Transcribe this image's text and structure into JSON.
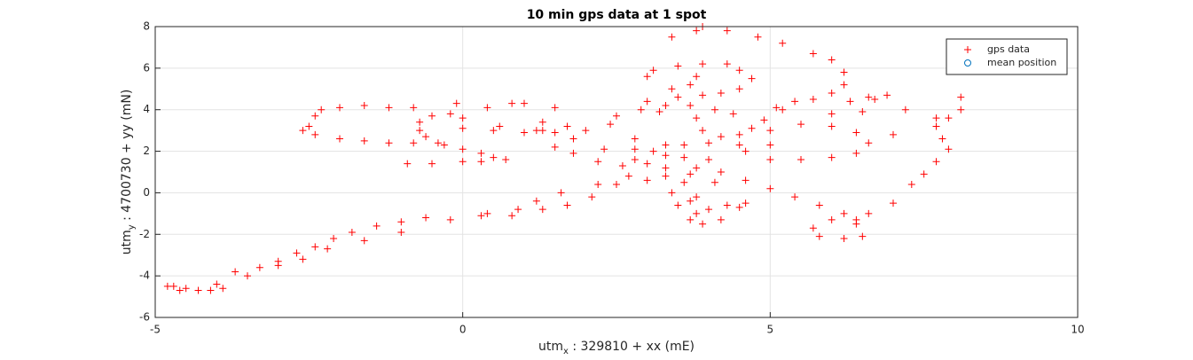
{
  "chart_data": {
    "type": "scatter",
    "title": "10 min gps data at 1 spot",
    "xlabel": {
      "main": "utm",
      "sub": "x",
      "rest": " : 329810 + xx (mE)"
    },
    "ylabel": {
      "main": "utm",
      "sub": "y",
      "rest": " : 4700730 + yy (mN)"
    },
    "xlim": [
      -5,
      10
    ],
    "ylim": [
      -6,
      8
    ],
    "xticks": [
      -5,
      0,
      5,
      10
    ],
    "yticks": [
      -6,
      -4,
      -2,
      0,
      2,
      4,
      6,
      8
    ],
    "grid": true,
    "legend": "northeast",
    "series": [
      {
        "name": "gps data",
        "color": "#ff0000",
        "marker": "plus",
        "x": [
          -4.7,
          -4.5,
          -4.3,
          -4.0,
          -3.7,
          -3.3,
          -3.0,
          -2.7,
          -2.4,
          -2.1,
          -1.8,
          -1.4,
          -1.0,
          -0.6,
          -0.2,
          0.3,
          0.8,
          1.3,
          1.7,
          2.1,
          2.5,
          3.0,
          3.3,
          3.6,
          3.7,
          3.8,
          3.9,
          4.2,
          4.5,
          4.6,
          4.1,
          3.7,
          3.3,
          2.8,
          2.3,
          1.8,
          1.3,
          0.6,
          0.0,
          -2.5,
          -2.4,
          -2.3,
          -2.0,
          -1.6,
          -1.2,
          -0.8,
          -2.6,
          -2.4,
          -2.0,
          -1.6,
          -1.2,
          -0.8,
          -0.4,
          -0.6,
          -0.7,
          -0.7,
          -0.5,
          -0.2,
          0.0,
          -0.3,
          0.0,
          0.3,
          0.5,
          0.7,
          0.3,
          0.0,
          -0.5,
          -0.9,
          0.5,
          1.0,
          1.5,
          2.0,
          2.4,
          2.5,
          2.9,
          3.3,
          3.7,
          4.1,
          4.4,
          2.8,
          2.8,
          3.1,
          3.3,
          3.6,
          4.0,
          4.5,
          5.0,
          3.7,
          3.8,
          3.4,
          3.0,
          3.1,
          3.5,
          3.9,
          4.3,
          4.5,
          4.7,
          4.5,
          4.2,
          3.9,
          3.5,
          3.4,
          3.8,
          3.9,
          4.3,
          4.8,
          5.2,
          5.7,
          6.0,
          6.2,
          6.2,
          6.0,
          5.7,
          5.4,
          5.1,
          6.3,
          6.6,
          6.9,
          6.7,
          7.2,
          7.7,
          8.1,
          8.1,
          7.9,
          7.7,
          7.8,
          7.9,
          7.7,
          7.5,
          7.3,
          7.0,
          6.6,
          6.4,
          6.5,
          6.2,
          5.8,
          5.7,
          6.0,
          6.4,
          6.2,
          5.8,
          5.4,
          5.0,
          4.6,
          4.2,
          3.8,
          5.0,
          5.5,
          6.0,
          6.4,
          6.6,
          6.4,
          6.0,
          5.5,
          5.0,
          4.7,
          4.5,
          4.9,
          5.2,
          6.0,
          6.5,
          7.0,
          3.8,
          3.9,
          4.2,
          4.6,
          4.0,
          3.6,
          3.3,
          3.0,
          2.6,
          2.2,
          1.8,
          1.5,
          1.2,
          1.7,
          1.3,
          1.5,
          1.0,
          0.8,
          0.4,
          -0.1,
          3.0,
          3.2,
          2.7,
          2.2,
          1.6,
          1.2,
          0.9,
          0.4,
          3.7,
          4.0,
          4.3,
          3.8,
          3.4,
          3.5,
          -1.0,
          -1.6,
          -2.2,
          -3.5,
          -3.9,
          -4.6,
          -4.8,
          -4.1,
          -3.0,
          -2.6
        ],
        "values": [
          -4.5,
          -4.6,
          -4.7,
          -4.4,
          -3.8,
          -3.6,
          -3.3,
          -2.9,
          -2.6,
          -2.2,
          -1.9,
          -1.6,
          -1.4,
          -1.2,
          -1.3,
          -1.1,
          -1.1,
          -0.8,
          -0.6,
          -0.2,
          0.4,
          0.6,
          0.8,
          0.5,
          -0.4,
          -1.0,
          -1.5,
          -1.3,
          -0.7,
          -0.5,
          0.5,
          0.9,
          1.2,
          1.6,
          2.1,
          2.6,
          3.0,
          3.2,
          3.1,
          3.2,
          3.7,
          4.0,
          4.1,
          4.2,
          4.1,
          4.1,
          3.0,
          2.8,
          2.6,
          2.5,
          2.4,
          2.4,
          2.4,
          2.7,
          3.0,
          3.4,
          3.7,
          3.8,
          3.6,
          2.3,
          2.1,
          1.9,
          1.7,
          1.6,
          1.5,
          1.5,
          1.4,
          1.4,
          3.0,
          2.9,
          2.9,
          3.0,
          3.3,
          3.7,
          4.0,
          4.2,
          4.2,
          4.0,
          3.8,
          2.6,
          2.1,
          2.0,
          2.3,
          2.3,
          2.4,
          2.3,
          2.3,
          5.2,
          5.6,
          5.0,
          5.6,
          5.9,
          6.1,
          6.2,
          6.2,
          5.9,
          5.5,
          5.0,
          4.8,
          4.7,
          4.6,
          7.5,
          7.8,
          8.0,
          7.8,
          7.5,
          7.2,
          6.7,
          6.4,
          5.8,
          5.2,
          4.8,
          4.5,
          4.4,
          4.1,
          4.4,
          4.6,
          4.7,
          4.5,
          4.0,
          3.6,
          4.0,
          4.6,
          3.6,
          3.2,
          2.6,
          2.1,
          1.5,
          0.9,
          0.4,
          -0.5,
          -1.0,
          -1.5,
          -2.1,
          -2.2,
          -2.1,
          -1.7,
          -1.3,
          -1.3,
          -1.0,
          -0.6,
          -0.2,
          0.2,
          0.6,
          1.0,
          1.2,
          1.6,
          1.6,
          1.7,
          1.9,
          2.4,
          2.9,
          3.2,
          3.3,
          3.0,
          3.1,
          2.8,
          3.5,
          4.0,
          3.8,
          3.9,
          2.8,
          3.6,
          3.0,
          2.7,
          2.0,
          1.6,
          1.7,
          1.8,
          1.4,
          1.3,
          1.5,
          1.9,
          2.2,
          3.0,
          3.2,
          3.4,
          4.1,
          4.3,
          4.3,
          4.1,
          4.3,
          4.4,
          3.9,
          0.8,
          0.4,
          0.0,
          -0.4,
          -0.8,
          -1.0,
          -1.3,
          -0.8,
          -0.6,
          -0.2,
          0.0,
          -0.6,
          -1.9,
          -2.3,
          -2.7,
          -4.0,
          -4.6,
          -4.7,
          -4.5,
          -4.7,
          -3.5,
          -3.2
        ]
      },
      {
        "name": "mean position",
        "color": "#0072bd",
        "marker": "circle",
        "x": [],
        "values": []
      }
    ]
  }
}
